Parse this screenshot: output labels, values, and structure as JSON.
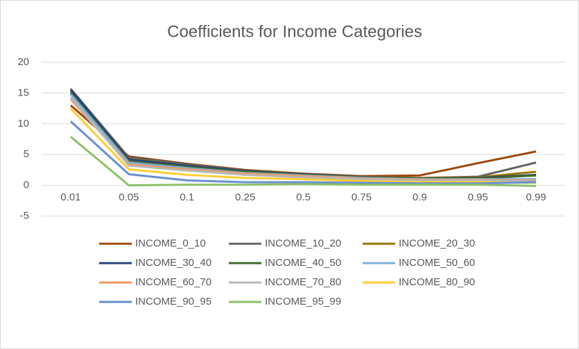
{
  "chart_data": {
    "type": "line",
    "title": "Coefficients for Income Categories",
    "categories": [
      "0.01",
      "0.05",
      "0.1",
      "0.25",
      "0.5",
      "0.75",
      "0.9",
      "0.95",
      "0.99"
    ],
    "ylim": [
      -5,
      20
    ],
    "yticks": [
      -5,
      0,
      5,
      10,
      15,
      20
    ],
    "grid": true,
    "legend": "bottom",
    "series": [
      {
        "name": "INCOME_0_10",
        "color": "#9e480e",
        "values": [
          13,
          4.7,
          3.5,
          2.5,
          1.9,
          1.5,
          1.6,
          3.6,
          5.5
        ]
      },
      {
        "name": "INCOME_10_20",
        "color": "#636363",
        "values": [
          15.7,
          4.5,
          3.4,
          2.4,
          1.8,
          1.4,
          1.2,
          1.4,
          3.7
        ]
      },
      {
        "name": "INCOME_20_30",
        "color": "#997300",
        "values": [
          15.3,
          4.3,
          3.2,
          2.3,
          1.8,
          1.3,
          1.2,
          1.3,
          2.2
        ]
      },
      {
        "name": "INCOME_30_40",
        "color": "#264478",
        "values": [
          15.5,
          4.2,
          3.2,
          2.3,
          1.8,
          1.3,
          1.1,
          1.2,
          1.7
        ]
      },
      {
        "name": "INCOME_40_50",
        "color": "#43682b",
        "values": [
          15.0,
          3.9,
          3.0,
          2.2,
          1.7,
          1.3,
          1.1,
          1.1,
          1.6
        ]
      },
      {
        "name": "INCOME_50_60",
        "color": "#7cafdd",
        "values": [
          14.8,
          3.7,
          2.8,
          2.0,
          1.6,
          1.2,
          1.0,
          1.0,
          1.0
        ]
      },
      {
        "name": "INCOME_60_70",
        "color": "#f1975a",
        "values": [
          14.0,
          3.4,
          2.6,
          1.9,
          1.5,
          1.1,
          0.9,
          0.9,
          0.8
        ]
      },
      {
        "name": "INCOME_70_80",
        "color": "#b7b7b7",
        "values": [
          14.3,
          3.2,
          2.4,
          1.7,
          1.3,
          1.0,
          0.8,
          0.8,
          0.7
        ]
      },
      {
        "name": "INCOME_80_90",
        "color": "#ffcd33",
        "values": [
          12.5,
          2.6,
          1.7,
          1.2,
          1.0,
          0.7,
          0.5,
          0.5,
          0.4
        ]
      },
      {
        "name": "INCOME_90_95",
        "color": "#698ed0",
        "values": [
          10.4,
          1.8,
          0.8,
          0.5,
          0.5,
          0.4,
          0.3,
          0.3,
          0.5
        ]
      },
      {
        "name": "INCOME_95_99",
        "color": "#8cc168",
        "values": [
          7.9,
          0.0,
          0.1,
          0.1,
          0.2,
          0.1,
          0.1,
          0.1,
          -0.1
        ]
      }
    ]
  }
}
